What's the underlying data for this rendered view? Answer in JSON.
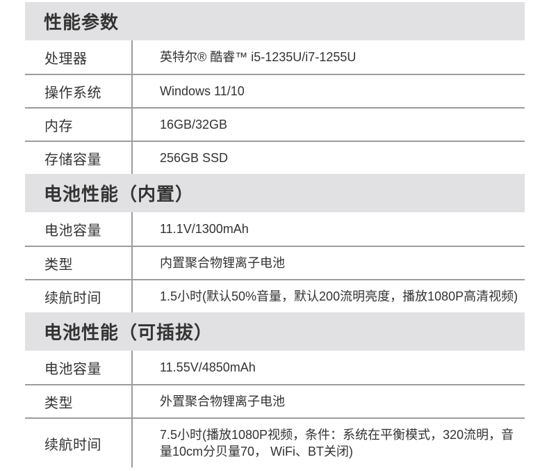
{
  "sections": [
    {
      "title": "性能参数",
      "rows": [
        {
          "label": "处理器",
          "value": "英特尔® 酷睿™ i5-1235U/i7-1255U"
        },
        {
          "label": "操作系统",
          "value": "Windows 11/10"
        },
        {
          "label": "内存",
          "value": "16GB/32GB"
        },
        {
          "label": "存储容量",
          "value": "256GB SSD"
        }
      ]
    },
    {
      "title": "电池性能（内置）",
      "rows": [
        {
          "label": "电池容量",
          "value": "11.1V/1300mAh"
        },
        {
          "label": "类型",
          "value": "内置聚合物锂离子电池"
        },
        {
          "label": "续航时间",
          "value": "1.5小时(默认50%音量，默认200流明亮度，播放1080P高清视频)"
        }
      ]
    },
    {
      "title": "电池性能（可插拔）",
      "rows": [
        {
          "label": "电池容量",
          "value": "11.55V/4850mAh"
        },
        {
          "label": "类型",
          "value": "外置聚合物锂离子电池"
        },
        {
          "label": "续航时间",
          "value": "7.5小时(播放1080P视频，条件：系统在平衡模式，320流明，音量10cm分贝量70， WiFi、BT关闭)"
        }
      ]
    }
  ],
  "colors": {
    "band_bg": "#e1e1e3",
    "divider": "#9c9c9c",
    "text": "#333333"
  }
}
